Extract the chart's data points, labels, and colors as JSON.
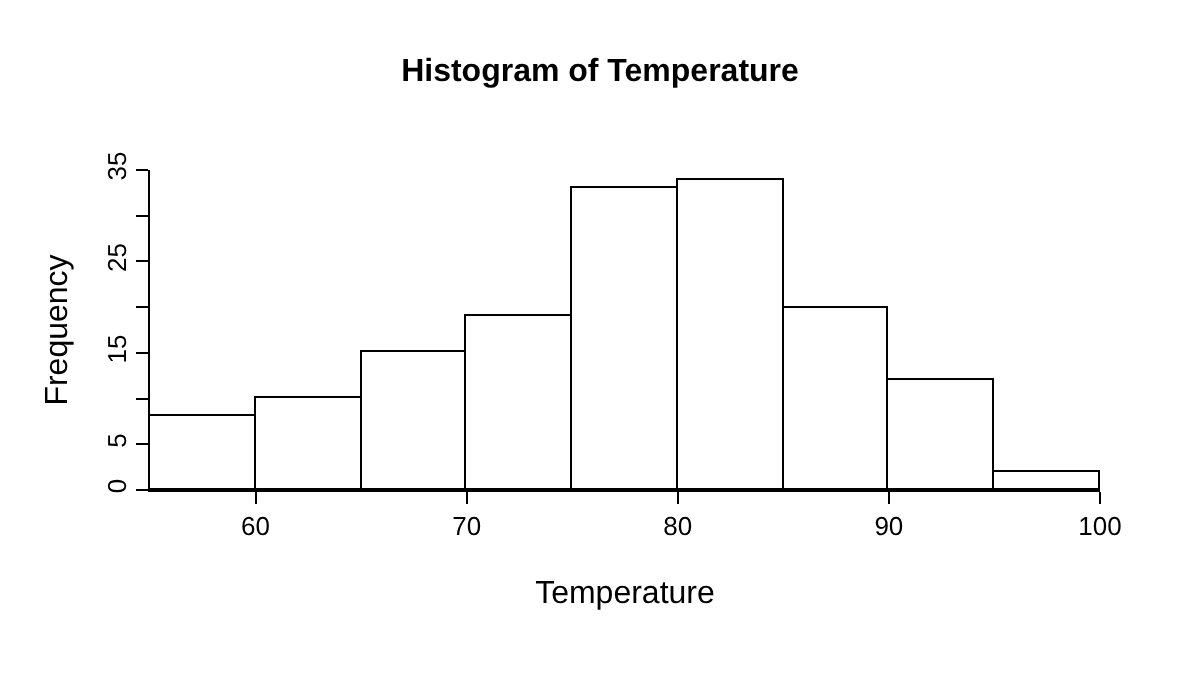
{
  "chart_data": {
    "type": "histogram",
    "title": "Histogram of Temperature",
    "xlabel": "Temperature",
    "ylabel": "Frequency",
    "bins": [
      55,
      60,
      65,
      70,
      75,
      80,
      85,
      90,
      95,
      100
    ],
    "values": [
      8,
      10,
      15,
      19,
      33,
      34,
      20,
      12,
      2
    ],
    "color": "#ffffff",
    "xlim": [
      55,
      100
    ],
    "ylim": [
      0,
      35
    ],
    "xticks": [
      60,
      70,
      80,
      90,
      100
    ],
    "yticks": [
      0,
      5,
      {
        "value": 10,
        "label": null
      },
      15,
      {
        "value": 20,
        "label": null
      },
      25,
      {
        "value": 30,
        "label": null
      },
      35
    ],
    "grid": false
  }
}
